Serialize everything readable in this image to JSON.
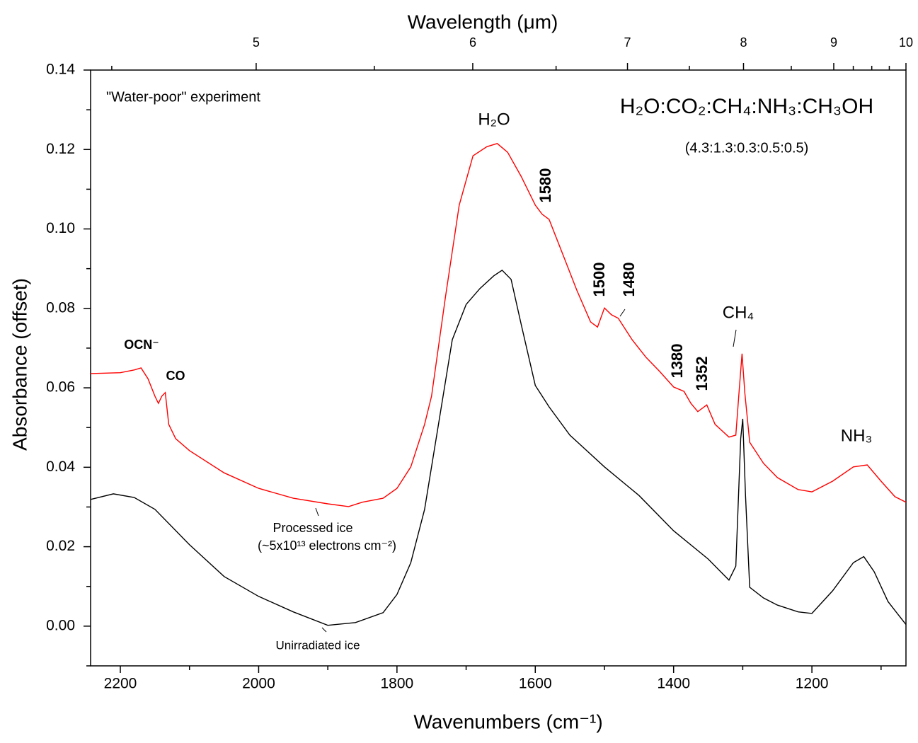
{
  "chart_data": {
    "type": "line",
    "xlabel": "Wavenumbers (cm⁻¹)",
    "ylabel": "Absorbance (offset)",
    "x2label": "Wavelength (μm)",
    "xlim": [
      2243,
      1064
    ],
    "xticks": [
      2200,
      2000,
      1800,
      1600,
      1400,
      1200
    ],
    "xminor": [
      2100,
      1900,
      1700,
      1500,
      1300,
      1100
    ],
    "x2lim": [
      4.435,
      10
    ],
    "x2scale": "reciprocal",
    "x2ticks": [
      5,
      6,
      7,
      8,
      9,
      10
    ],
    "x2minor": [
      4.5,
      5.5,
      6.5,
      7.5,
      8.5,
      9.25,
      9.5,
      9.75
    ],
    "ylim": [
      -0.01,
      0.14
    ],
    "yticks": [
      {
        "value": 0,
        "label": "0.00"
      },
      0.02,
      0.04,
      0.06,
      0.08,
      {
        "value": 0.1,
        "label": "0.10"
      },
      0.12,
      0.14
    ],
    "yminor": [
      -0.01,
      0.01,
      0.03,
      0.05,
      0.07,
      0.09,
      0.11,
      0.13
    ],
    "annotations": [
      "\"Water-poor\" experiment",
      "H₂O",
      "H₂O:CO₂:CH₄:NH₃:CH₃OH",
      "(4.3:1.3:0.3:0.5:0.5)",
      "1580",
      "1500",
      "1480",
      "1380",
      "1352",
      "CH₄",
      "NH₃",
      "OCN⁻",
      "CO",
      "Processed ice",
      "(~5x10¹³ electrons cm⁻²)",
      "Unirradiated ice"
    ],
    "series": [
      {
        "name": "Processed ice",
        "color": "#ff0000",
        "x": [
          2243,
          2200,
          2180,
          2170,
          2160,
          2150,
          2145,
          2140,
          2135,
          2130,
          2120,
          2100,
          2050,
          2000,
          1950,
          1900,
          1870,
          1850,
          1820,
          1800,
          1780,
          1760,
          1750,
          1730,
          1710,
          1690,
          1670,
          1655,
          1640,
          1620,
          1600,
          1590,
          1580,
          1560,
          1540,
          1520,
          1510,
          1500,
          1490,
          1480,
          1460,
          1440,
          1420,
          1400,
          1385,
          1375,
          1365,
          1352,
          1340,
          1320,
          1310,
          1305,
          1301,
          1297,
          1290,
          1270,
          1250,
          1220,
          1200,
          1170,
          1140,
          1120,
          1100,
          1080,
          1064
        ],
        "values": [
          0.0636,
          0.0638,
          0.0645,
          0.065,
          0.0623,
          0.0579,
          0.0561,
          0.0579,
          0.0588,
          0.0508,
          0.0472,
          0.0442,
          0.0386,
          0.0347,
          0.0322,
          0.0308,
          0.0301,
          0.0312,
          0.0322,
          0.0347,
          0.0401,
          0.0508,
          0.0579,
          0.0828,
          0.106,
          0.1184,
          0.1207,
          0.1215,
          0.1193,
          0.1131,
          0.106,
          0.1037,
          0.1024,
          0.0935,
          0.0846,
          0.0766,
          0.0753,
          0.0801,
          0.0784,
          0.0775,
          0.0721,
          0.0677,
          0.0641,
          0.0602,
          0.0591,
          0.0561,
          0.054,
          0.0557,
          0.0508,
          0.0476,
          0.0481,
          0.0597,
          0.0686,
          0.0588,
          0.0463,
          0.041,
          0.0374,
          0.0344,
          0.0338,
          0.0365,
          0.0401,
          0.0406,
          0.0365,
          0.0326,
          0.0312
        ]
      },
      {
        "name": "Unirradiated ice",
        "color": "#000000",
        "x": [
          2243,
          2210,
          2180,
          2150,
          2100,
          2050,
          2000,
          1950,
          1900,
          1860,
          1820,
          1800,
          1780,
          1760,
          1740,
          1720,
          1700,
          1680,
          1660,
          1648,
          1635,
          1620,
          1600,
          1580,
          1550,
          1500,
          1450,
          1400,
          1350,
          1320,
          1310,
          1303,
          1300,
          1296,
          1290,
          1270,
          1250,
          1220,
          1200,
          1170,
          1140,
          1125,
          1110,
          1090,
          1064
        ],
        "values": [
          0.0319,
          0.0333,
          0.0324,
          0.0294,
          0.0205,
          0.0125,
          0.0075,
          0.0036,
          0.0002,
          0.0009,
          0.0034,
          0.008,
          0.016,
          0.0294,
          0.0508,
          0.0721,
          0.081,
          0.085,
          0.0882,
          0.0896,
          0.0873,
          0.0757,
          0.0606,
          0.0552,
          0.0481,
          0.0401,
          0.0329,
          0.024,
          0.0169,
          0.0116,
          0.0151,
          0.0472,
          0.0522,
          0.0329,
          0.0098,
          0.0071,
          0.0053,
          0.0036,
          0.0032,
          0.0089,
          0.016,
          0.0175,
          0.0137,
          0.0062,
          0.0004
        ]
      }
    ]
  }
}
